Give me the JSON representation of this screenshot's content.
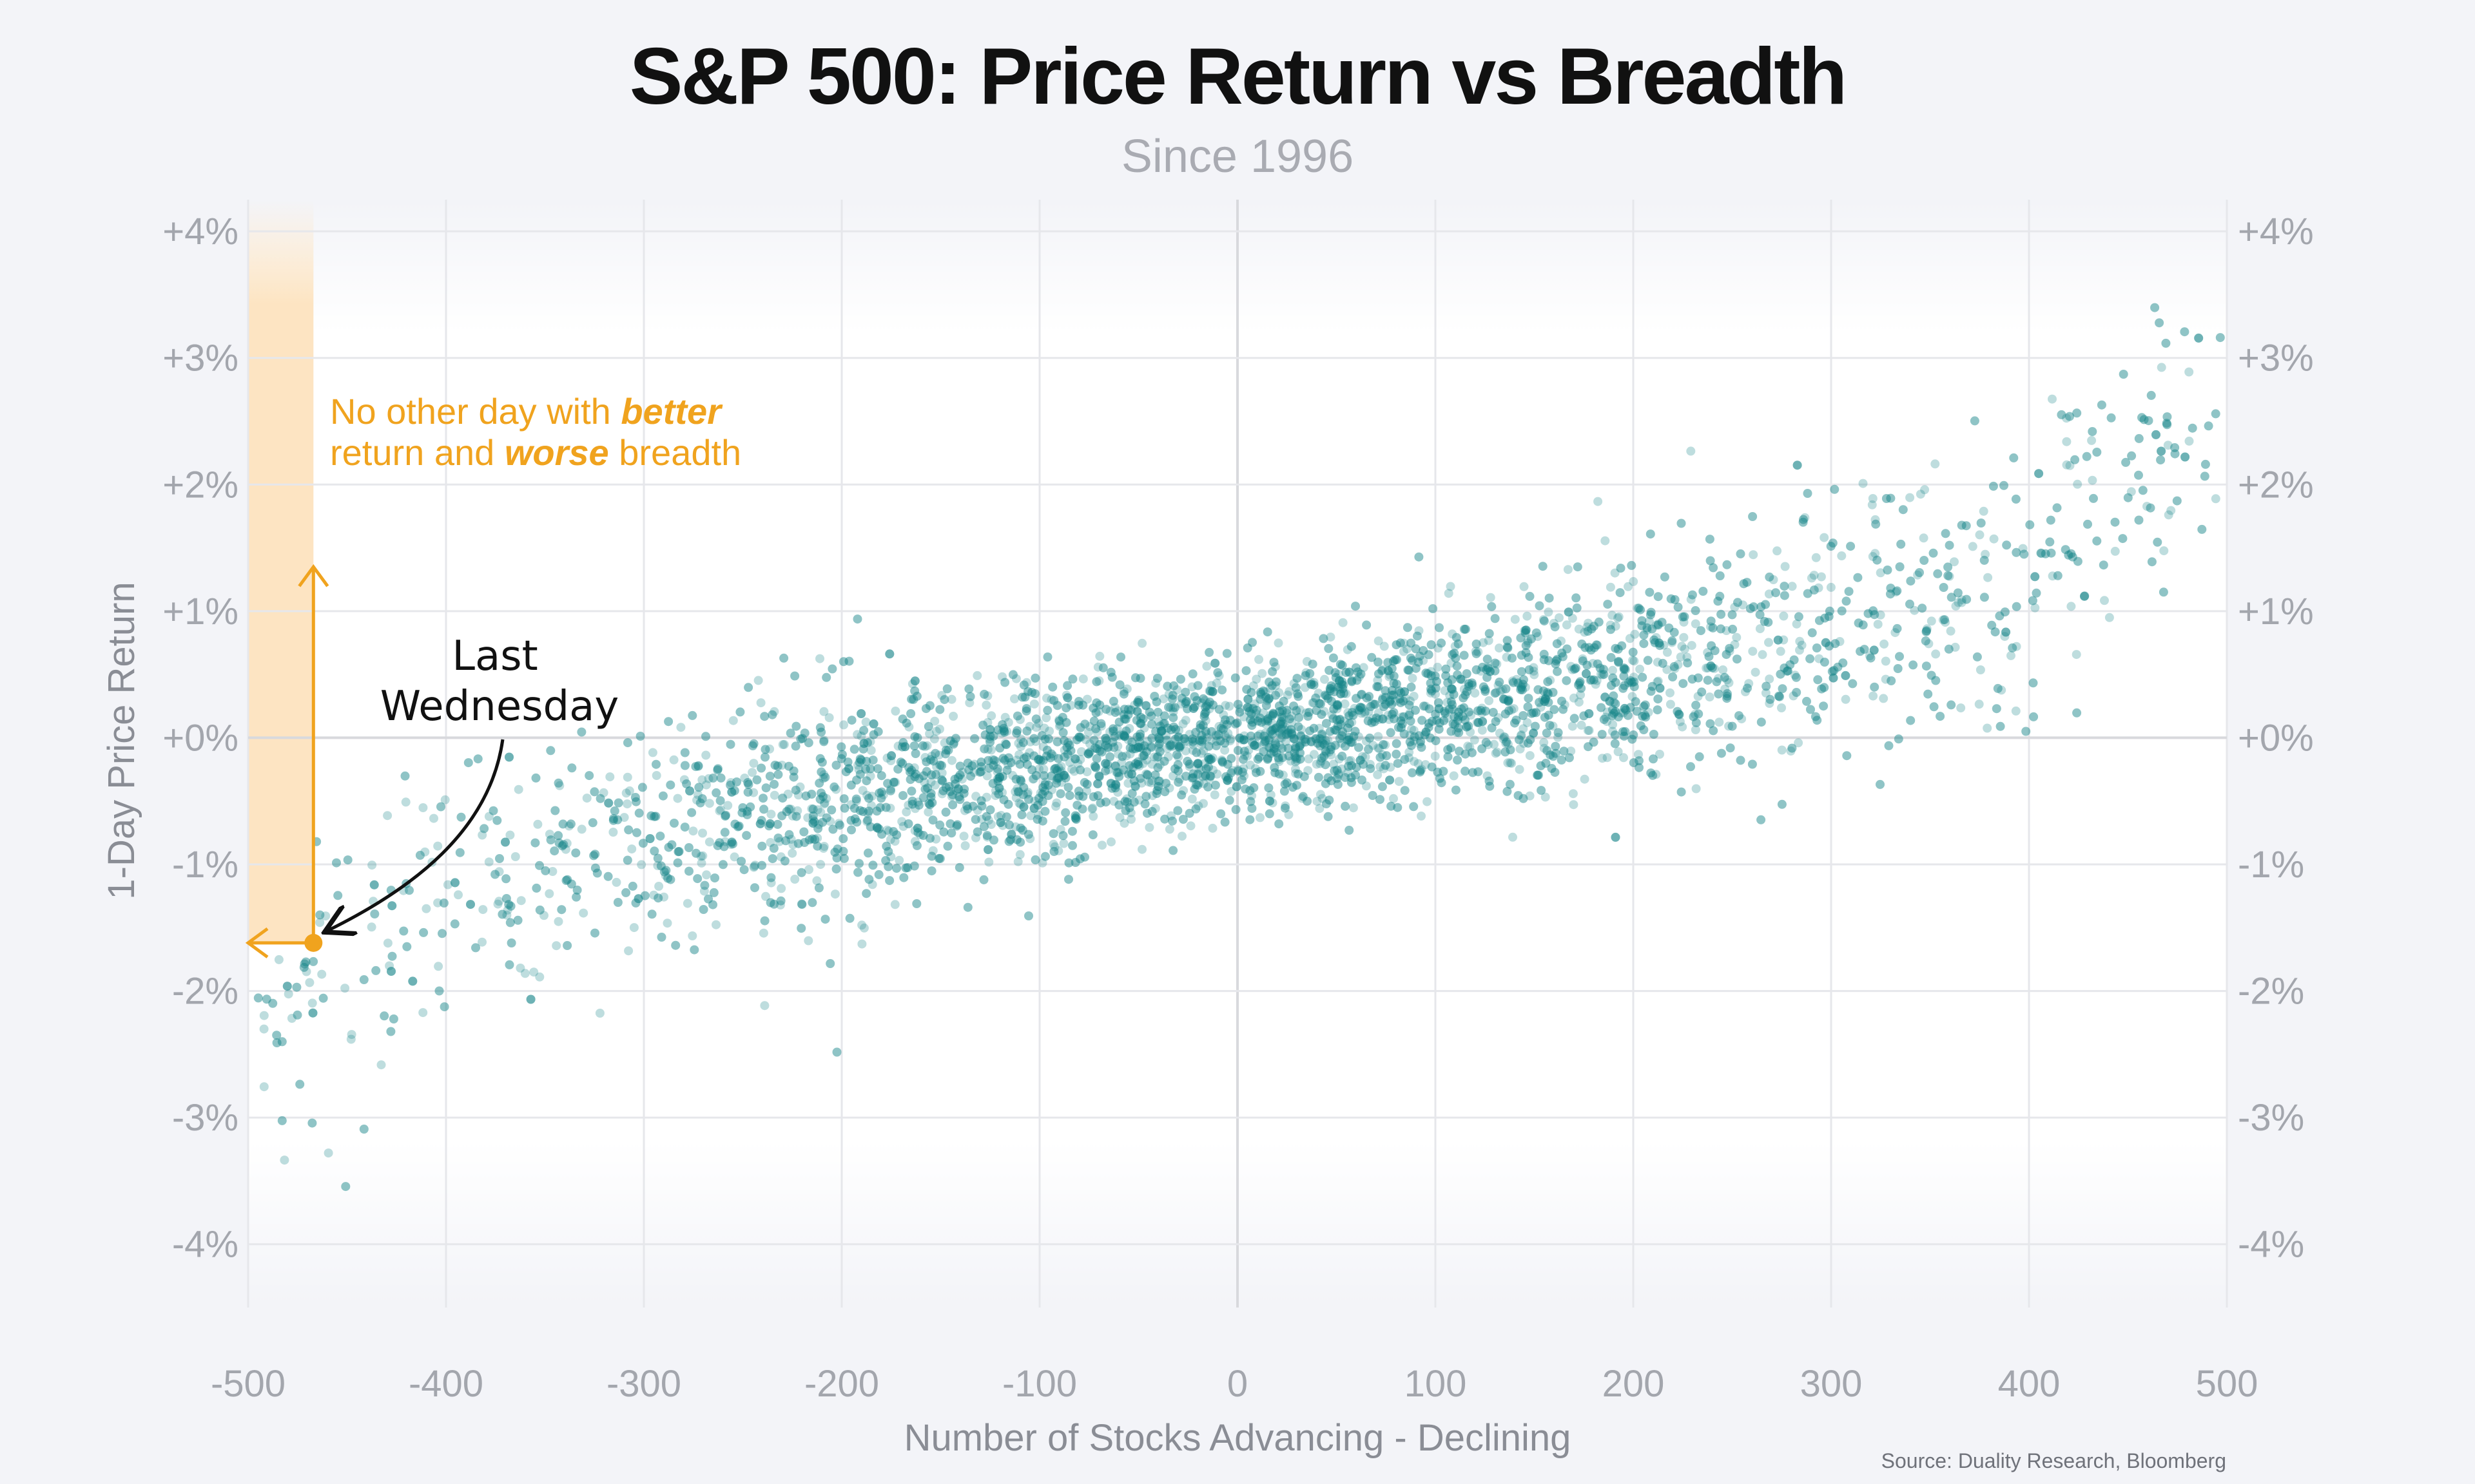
{
  "title": "S&P 500: Price Return vs Breadth",
  "subtitle": "Since 1996",
  "source": "Source: Duality Research, Bloomberg",
  "colors": {
    "background": "#f3f4f8",
    "points": "#17868a",
    "annotation": "#f0a31e",
    "highlight_band": "#fde3bf",
    "marker": "#f0a31e"
  },
  "chart_data": {
    "type": "scatter",
    "title": "S&P 500: Price Return vs Breadth",
    "subtitle": "Since 1996",
    "xlabel": "Number of Stocks Advancing - Declining",
    "ylabel": "1-Day Price Return",
    "xlim": [
      -500,
      500
    ],
    "ylim": [
      -4.5,
      4.25
    ],
    "x_ticks": [
      -500,
      -400,
      -300,
      -200,
      -100,
      0,
      100,
      200,
      300,
      400,
      500
    ],
    "x_tick_labels": [
      "-500",
      "-400",
      "-300",
      "-200",
      "-100",
      "0",
      "100",
      "200",
      "300",
      "400",
      "500"
    ],
    "y_ticks": [
      4,
      3,
      2,
      1,
      0,
      -1,
      -2,
      -3,
      -4
    ],
    "y_tick_labels": [
      "+4%",
      "+3%",
      "+2%",
      "+1%",
      "+0%",
      "-1%",
      "-2%",
      "-3%",
      "-4%"
    ],
    "grid": true,
    "y_axis_labels_both_sides": true,
    "approximate_trend": [
      {
        "x": -480,
        "y": -2.0
      },
      {
        "x": -400,
        "y": -1.3
      },
      {
        "x": -300,
        "y": -0.85
      },
      {
        "x": -200,
        "y": -0.45
      },
      {
        "x": -100,
        "y": -0.22
      },
      {
        "x": 0,
        "y": 0.0
      },
      {
        "x": 100,
        "y": 0.22
      },
      {
        "x": 200,
        "y": 0.48
      },
      {
        "x": 300,
        "y": 0.85
      },
      {
        "x": 400,
        "y": 1.35
      },
      {
        "x": 480,
        "y": 2.4
      }
    ],
    "highlight": {
      "label_line1": "Last",
      "label_line2": "Wednesday",
      "x": -467,
      "y": -1.62
    },
    "highlight_region": {
      "x_from": -500,
      "x_to": -467,
      "y_from": -1.62,
      "y_to": 4.25
    },
    "annotation": {
      "line1_prefix": "No other day with ",
      "line1_emphasis": "better",
      "line2_prefix": "return and ",
      "line2_emphasis": "worse",
      "line2_suffix": " breadth"
    }
  }
}
